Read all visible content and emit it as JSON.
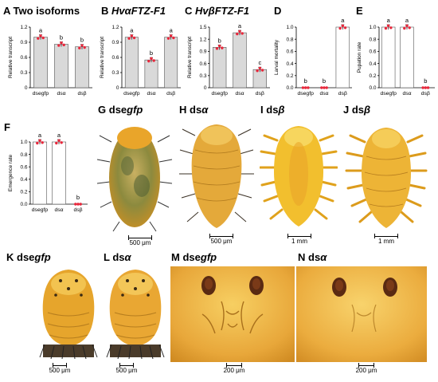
{
  "panels": {
    "A": {
      "letter": "A",
      "title": "Two isoforms"
    },
    "B": {
      "letter": "B",
      "title_prefix": "Hvα",
      "title_main": "FTZ-F1"
    },
    "C": {
      "letter": "C",
      "title_prefix": "Hvβ",
      "title_main": "FTZ-F1"
    },
    "D": {
      "letter": "D"
    },
    "E": {
      "letter": "E"
    },
    "F": {
      "letter": "F"
    },
    "G": {
      "letter": "G",
      "prefix": "dse",
      "suffix": "gfp"
    },
    "H": {
      "letter": "H",
      "prefix": "ds",
      "suffix": "α"
    },
    "I": {
      "letter": "I",
      "prefix": "ds",
      "suffix": "β"
    },
    "J": {
      "letter": "J",
      "prefix": "ds",
      "suffix": "β"
    },
    "K": {
      "letter": "K",
      "prefix": "dse",
      "suffix": "gfp"
    },
    "L": {
      "letter": "L",
      "prefix": "ds",
      "suffix": "α"
    },
    "M": {
      "letter": "M",
      "prefix": "dse",
      "suffix": "gfp"
    },
    "N": {
      "letter": "N",
      "prefix": "ds",
      "suffix": "α"
    }
  },
  "scale_bars": {
    "G": "500 μm",
    "H": "500 μm",
    "I": "1 mm",
    "J": "1 mm",
    "K": "500 μm",
    "L": "500 μm",
    "M": "200 μm",
    "N": "200 μm"
  },
  "colors": {
    "bar_fill": "#d9d9d9",
    "bar_fill_alt": "#ffffff",
    "dot": "#e8283c",
    "larva_body": "#e9a52a",
    "larva_light": "#f5c94b",
    "background_photo": "#ececec"
  },
  "chart_data": [
    {
      "panel": "A",
      "type": "bar",
      "categories": [
        "dsegfp",
        "dsα",
        "dsβ"
      ],
      "values": [
        1.0,
        0.86,
        0.81
      ],
      "letters": [
        "a",
        "b",
        "b"
      ],
      "ylabel": "Relative transcript",
      "ylim": [
        0,
        1.2
      ],
      "yticks": [
        "0",
        "0.3",
        "0.6",
        "0.9",
        "1.2"
      ]
    },
    {
      "panel": "B",
      "type": "bar",
      "categories": [
        "dsegfp",
        "dsα",
        "dsβ"
      ],
      "values": [
        1.0,
        0.55,
        1.0
      ],
      "letters": [
        "a",
        "b",
        "a"
      ],
      "ylabel": "Relative transcript",
      "ylim": [
        0,
        1.2
      ],
      "yticks": [
        "0",
        "0.3",
        "0.6",
        "0.9",
        "1.2"
      ]
    },
    {
      "panel": "C",
      "type": "bar",
      "categories": [
        "dsegfp",
        "dsα",
        "dsβ"
      ],
      "values": [
        1.0,
        1.36,
        0.45
      ],
      "letters": [
        "b",
        "a",
        "c"
      ],
      "ylabel": "Relative transcript",
      "ylim": [
        0,
        1.5
      ],
      "yticks": [
        "0",
        "0.3",
        "0.6",
        "0.9",
        "1.2",
        "1.5"
      ]
    },
    {
      "panel": "D",
      "type": "bar",
      "categories": [
        "dsegfp",
        "dsα",
        "dsβ"
      ],
      "values": [
        0.0,
        0.0,
        1.0
      ],
      "letters": [
        "b",
        "b",
        "a"
      ],
      "ylabel": "Larval mortality",
      "ylim": [
        0,
        1.0
      ],
      "yticks": [
        "0.0",
        "0.2",
        "0.4",
        "0.6",
        "0.8",
        "1.0"
      ]
    },
    {
      "panel": "E",
      "type": "bar",
      "categories": [
        "dsegfp",
        "dsα",
        "dsβ"
      ],
      "values": [
        1.0,
        1.0,
        0.0
      ],
      "letters": [
        "a",
        "a",
        "b"
      ],
      "ylabel": "Pupation rate",
      "ylim": [
        0,
        1.0
      ],
      "yticks": [
        "0.0",
        "0.2",
        "0.4",
        "0.6",
        "0.8",
        "1.0"
      ]
    },
    {
      "panel": "F",
      "type": "bar",
      "categories": [
        "dsegfp",
        "dsα",
        "dsβ"
      ],
      "values": [
        1.0,
        1.0,
        0.0
      ],
      "letters": [
        "a",
        "a",
        "b"
      ],
      "ylabel": "Emergence rate",
      "ylim": [
        0,
        1.0
      ],
      "yticks": [
        "0.0",
        "0.2",
        "0.4",
        "0.6",
        "0.8",
        "1.0"
      ]
    }
  ]
}
